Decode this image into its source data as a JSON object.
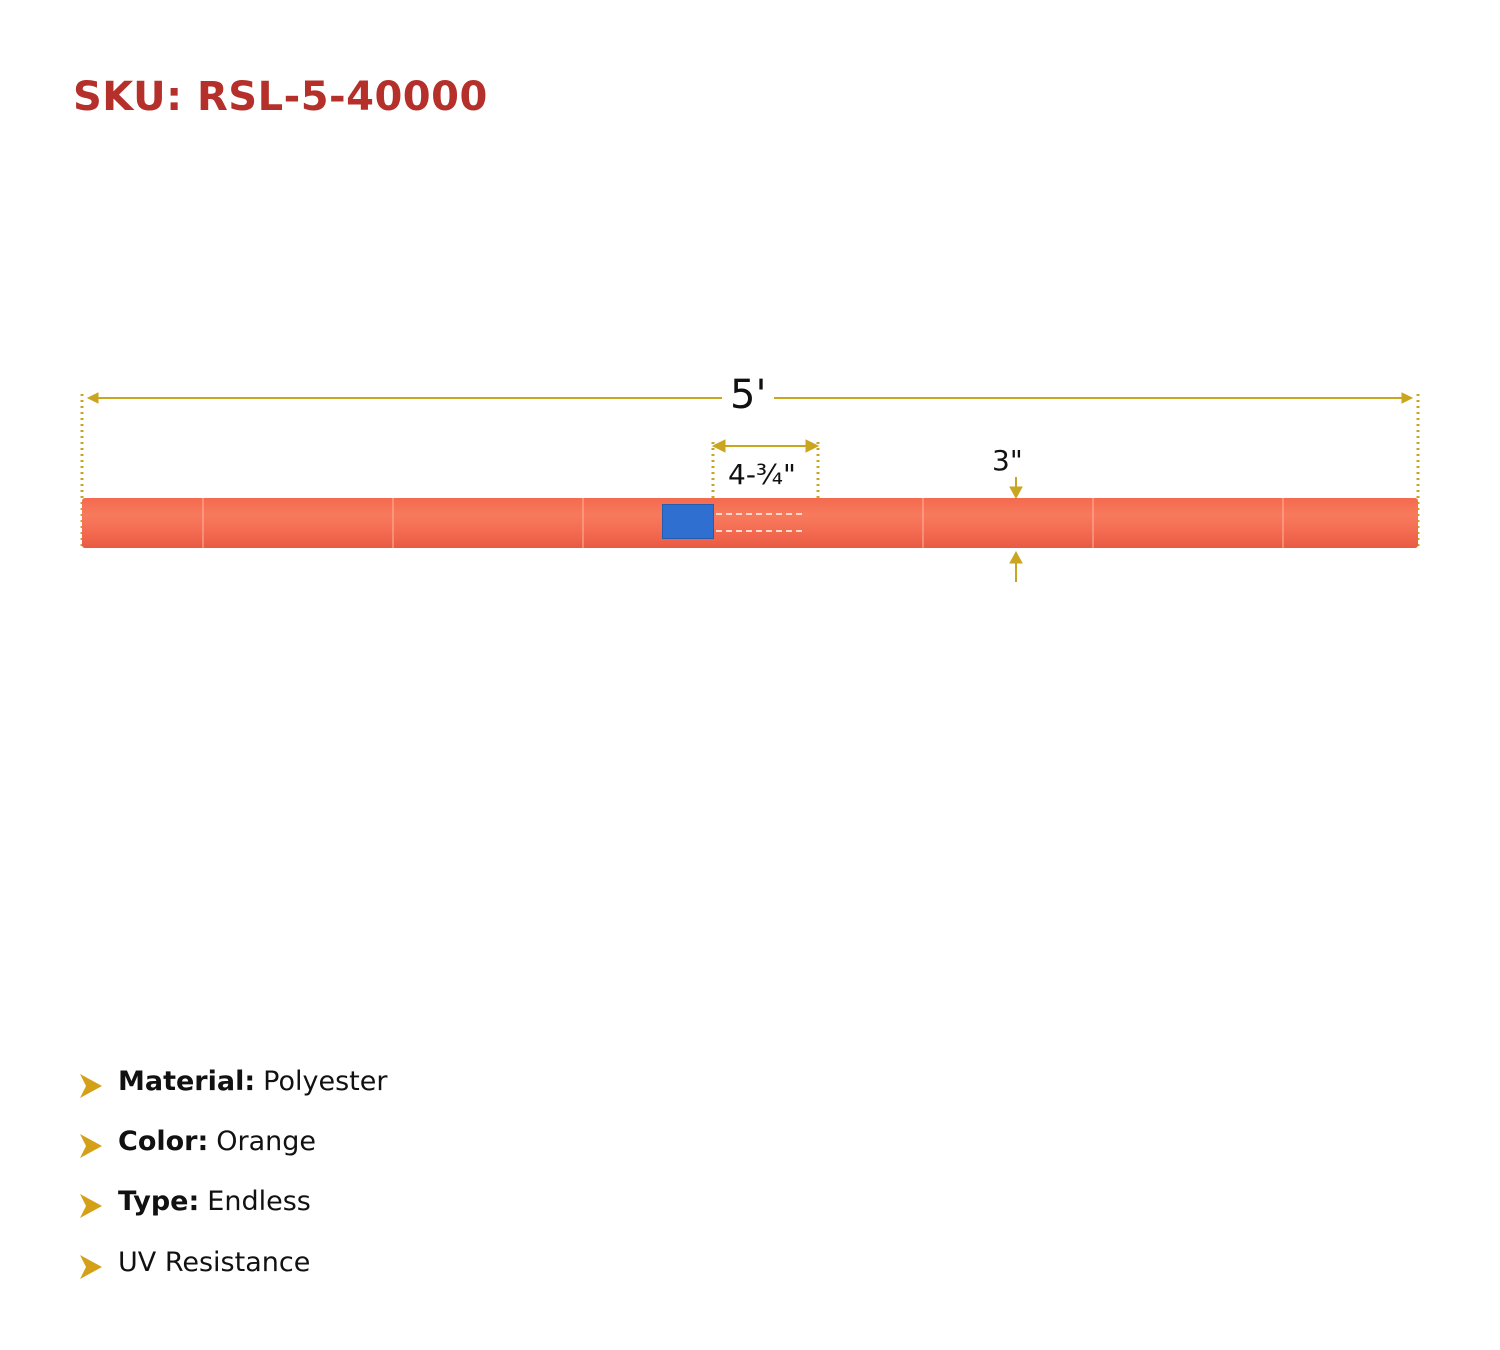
{
  "sku_label": "SKU: RSL-5-40000",
  "dimensions": {
    "length": "5'",
    "tag_width": "4-¾\"",
    "diameter": "3\""
  },
  "specs": [
    {
      "label": "Material:",
      "value": " Polyester"
    },
    {
      "label": "Color:",
      "value": "Orange"
    },
    {
      "label": "Type:",
      "value": "Endless"
    },
    {
      "label": "",
      "value": "UV Resistance"
    }
  ],
  "colors": {
    "sku": "#b5302a",
    "dimension_line": "#c9a520",
    "sling": "#f46a4f",
    "tag": "#2f6fd0",
    "bullet": "#d4a017"
  },
  "icons": {
    "bullet": "chevron-right-icon"
  }
}
